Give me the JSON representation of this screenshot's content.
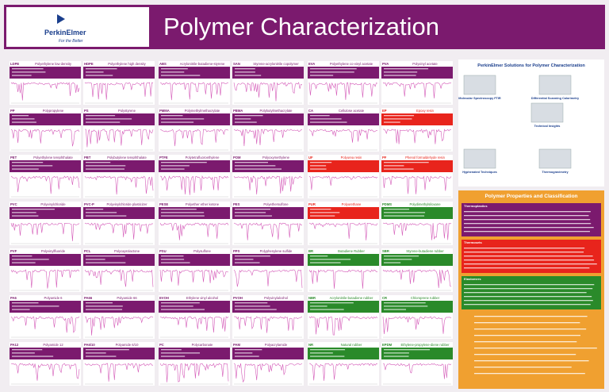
{
  "header": {
    "logo": "PerkinElmer",
    "tagline": "For the Better",
    "title": "Polymer Characterization"
  },
  "panels": [
    [
      {
        "abbr": "LDPE",
        "name": "Polyethylene low density",
        "color": "#7b1a6e"
      },
      {
        "abbr": "HDPE",
        "name": "Polyethylene high density",
        "color": "#7b1a6e"
      },
      {
        "abbr": "ABS",
        "name": "Acrylonitrile-butadiene-styrene",
        "color": "#7b1a6e"
      },
      {
        "abbr": "SAN",
        "name": "Styrene-acrylonitrile copolymer",
        "color": "#7b1a6e"
      },
      {
        "abbr": "EVA",
        "name": "Polyethylene co-vinyl acetate",
        "color": "#7b1a6e"
      },
      {
        "abbr": "PVA",
        "name": "Polyvinyl acetate",
        "color": "#7b1a6e"
      }
    ],
    [
      {
        "abbr": "PP",
        "name": "Polypropylene",
        "color": "#7b1a6e"
      },
      {
        "abbr": "PS",
        "name": "Polystyrene",
        "color": "#7b1a6e"
      },
      {
        "abbr": "PMMA",
        "name": "Polymethylmethacrylate",
        "color": "#7b1a6e"
      },
      {
        "abbr": "PBMA",
        "name": "Polybutylmethacrylate",
        "color": "#7b1a6e"
      },
      {
        "abbr": "CA",
        "name": "Cellulose acetate",
        "color": "#7b1a6e"
      },
      {
        "abbr": "EP",
        "name": "Epoxy resin",
        "color": "#e8241c"
      }
    ],
    [
      {
        "abbr": "PET",
        "name": "Polyethylene terephthalate",
        "color": "#7b1a6e"
      },
      {
        "abbr": "PBT",
        "name": "Polybutylene terephthalate",
        "color": "#7b1a6e"
      },
      {
        "abbr": "PTFE",
        "name": "Polytetrafluoroethylene",
        "color": "#7b1a6e"
      },
      {
        "abbr": "POM",
        "name": "Polyoxymethylene",
        "color": "#7b1a6e"
      },
      {
        "abbr": "UF",
        "name": "Polyurea resin",
        "color": "#e8241c"
      },
      {
        "abbr": "PF",
        "name": "Phenol formaldehyde resin",
        "color": "#e8241c"
      }
    ],
    [
      {
        "abbr": "PVC",
        "name": "Polyvinylchloride",
        "color": "#7b1a6e"
      },
      {
        "abbr": "PVC-P",
        "name": "Polyvinylchloride plasticizer",
        "color": "#7b1a6e"
      },
      {
        "abbr": "PESE",
        "name": "Polyether ether ketone",
        "color": "#7b1a6e"
      },
      {
        "abbr": "PES",
        "name": "Polyethersulfone",
        "color": "#7b1a6e"
      },
      {
        "abbr": "PUR",
        "name": "Polyurethane",
        "color": "#e8241c"
      },
      {
        "abbr": "PDMS",
        "name": "Polydimethylsiloxane",
        "color": "#2a8a2a"
      }
    ],
    [
      {
        "abbr": "PVF",
        "name": "Polyvinylfluoride",
        "color": "#7b1a6e"
      },
      {
        "abbr": "PCL",
        "name": "Polycaprolactone",
        "color": "#7b1a6e"
      },
      {
        "abbr": "PSU",
        "name": "Polysulfone",
        "color": "#7b1a6e"
      },
      {
        "abbr": "PPS",
        "name": "Polyphenylene sulfide",
        "color": "#7b1a6e"
      },
      {
        "abbr": "BR",
        "name": "Butadiene Rubber",
        "color": "#2a8a2a"
      },
      {
        "abbr": "SBR",
        "name": "Styrene-butadiene rubber",
        "color": "#2a8a2a"
      }
    ],
    [
      {
        "abbr": "PA6",
        "name": "Polyamide 6",
        "color": "#7b1a6e"
      },
      {
        "abbr": "PA66",
        "name": "Polyamide 66",
        "color": "#7b1a6e"
      },
      {
        "abbr": "EVOH",
        "name": "Ethylene vinyl alcohol",
        "color": "#7b1a6e"
      },
      {
        "abbr": "PVOH",
        "name": "Polyvinylalcohol",
        "color": "#7b1a6e"
      },
      {
        "abbr": "NBR",
        "name": "Acrylonitrile-butadiene rubber",
        "color": "#2a8a2a"
      },
      {
        "abbr": "CR",
        "name": "Chloroprene rubber",
        "color": "#2a8a2a"
      }
    ],
    [
      {
        "abbr": "PA12",
        "name": "Polyamide 12",
        "color": "#7b1a6e"
      },
      {
        "abbr": "PA6/10",
        "name": "Polyamide 6/10",
        "color": "#7b1a6e"
      },
      {
        "abbr": "PC",
        "name": "Polycarbonate",
        "color": "#7b1a6e"
      },
      {
        "abbr": "PAM",
        "name": "Polyacrylamide",
        "color": "#7b1a6e"
      },
      {
        "abbr": "NR",
        "name": "Natural rubber",
        "color": "#2a8a2a"
      },
      {
        "abbr": "EPDM",
        "name": "Ethylene-propylene-diene rubber",
        "color": "#2a8a2a"
      }
    ]
  ],
  "sidebar": {
    "title": "PerkinElmer Solutions for Polymer Characterization",
    "products": [
      "Molecular Spectroscopy FTIR",
      "Differential Scanning Calorimetry",
      "Technical Insights",
      "Hyphenated Techniques",
      "Thermogravimetry"
    ],
    "classification": {
      "title": "Polymer Properties and Classification",
      "sections": [
        {
          "name": "Thermoplastics",
          "color": "#7b1a6e"
        },
        {
          "name": "Thermosets",
          "color": "#e8241c"
        },
        {
          "name": "Elastomers",
          "color": "#2a8a2a"
        }
      ]
    }
  }
}
